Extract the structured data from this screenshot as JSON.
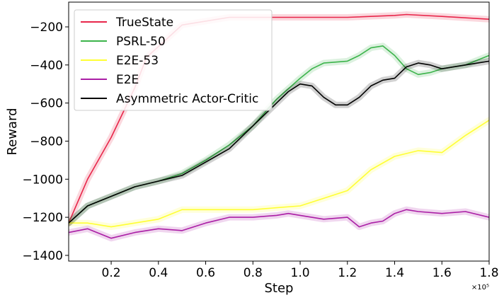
{
  "chart_data": {
    "type": "line",
    "title": "",
    "xlabel": "Step",
    "ylabel": "Reward",
    "x_multiplier_label": "×10⁵",
    "xlim": [
      0.02,
      1.8
    ],
    "ylim": [
      -1430,
      -70
    ],
    "xticks": [
      0.2,
      0.4,
      0.6,
      0.8,
      1.0,
      1.2,
      1.4,
      1.6,
      1.8
    ],
    "xtick_labels": [
      "0.2",
      "0.4",
      "0.6",
      "0.8",
      "1.0",
      "1.2",
      "1.4",
      "1.6",
      "1.8"
    ],
    "yticks": [
      -200,
      -400,
      -600,
      -800,
      -1000,
      -1200,
      -1400
    ],
    "ytick_labels": [
      "−200",
      "−400",
      "−600",
      "−800",
      "−1000",
      "−1200",
      "−1400"
    ],
    "grid": false,
    "legend_position": "top-left",
    "series": [
      {
        "name": "TrueState",
        "color": "#e8264a",
        "x": [
          0.02,
          0.1,
          0.2,
          0.3,
          0.35,
          0.5,
          0.7,
          0.9,
          1.0,
          1.2,
          1.4,
          1.45,
          1.6,
          1.8
        ],
        "y": [
          -1230,
          -1000,
          -780,
          -520,
          -360,
          -190,
          -150,
          -150,
          -150,
          -150,
          -140,
          -135,
          -145,
          -160
        ]
      },
      {
        "name": "PSRL-50",
        "color": "#3cb44b",
        "x": [
          0.02,
          0.1,
          0.2,
          0.3,
          0.4,
          0.5,
          0.6,
          0.7,
          0.8,
          0.9,
          1.0,
          1.05,
          1.1,
          1.2,
          1.25,
          1.3,
          1.35,
          1.4,
          1.45,
          1.5,
          1.55,
          1.6,
          1.7,
          1.8
        ],
        "y": [
          -1230,
          -1140,
          -1090,
          -1040,
          -1010,
          -970,
          -900,
          -820,
          -720,
          -580,
          -470,
          -420,
          -390,
          -380,
          -350,
          -310,
          -300,
          -350,
          -420,
          -450,
          -440,
          -420,
          -400,
          -350
        ]
      },
      {
        "name": "E2E-53",
        "color": "#ffff33",
        "x": [
          0.02,
          0.1,
          0.2,
          0.3,
          0.4,
          0.5,
          0.6,
          0.7,
          0.8,
          0.9,
          1.0,
          1.1,
          1.2,
          1.3,
          1.4,
          1.5,
          1.6,
          1.7,
          1.8
        ],
        "y": [
          -1230,
          -1230,
          -1250,
          -1230,
          -1210,
          -1160,
          -1160,
          -1160,
          -1160,
          -1150,
          -1140,
          -1100,
          -1060,
          -950,
          -880,
          -850,
          -860,
          -770,
          -690
        ]
      },
      {
        "name": "E2E",
        "color": "#aa1ea5",
        "x": [
          0.02,
          0.1,
          0.2,
          0.3,
          0.4,
          0.5,
          0.6,
          0.7,
          0.8,
          0.9,
          0.95,
          1.0,
          1.1,
          1.2,
          1.25,
          1.3,
          1.35,
          1.4,
          1.45,
          1.5,
          1.6,
          1.7,
          1.8
        ],
        "y": [
          -1280,
          -1260,
          -1310,
          -1280,
          -1260,
          -1270,
          -1230,
          -1200,
          -1200,
          -1190,
          -1180,
          -1190,
          -1210,
          -1200,
          -1250,
          -1230,
          -1220,
          -1180,
          -1160,
          -1170,
          -1180,
          -1170,
          -1200
        ]
      },
      {
        "name": "Asymmetric Actor-Critic",
        "color": "#000000",
        "x": [
          0.02,
          0.1,
          0.2,
          0.3,
          0.4,
          0.5,
          0.6,
          0.7,
          0.8,
          0.9,
          0.95,
          1.0,
          1.05,
          1.1,
          1.15,
          1.2,
          1.25,
          1.3,
          1.35,
          1.4,
          1.45,
          1.5,
          1.55,
          1.6,
          1.7,
          1.8
        ],
        "y": [
          -1230,
          -1140,
          -1090,
          -1040,
          -1010,
          -980,
          -910,
          -840,
          -720,
          -600,
          -540,
          -500,
          -510,
          -570,
          -610,
          -610,
          -570,
          -510,
          -480,
          -470,
          -410,
          -390,
          -400,
          -420,
          -400,
          -380
        ]
      }
    ]
  }
}
